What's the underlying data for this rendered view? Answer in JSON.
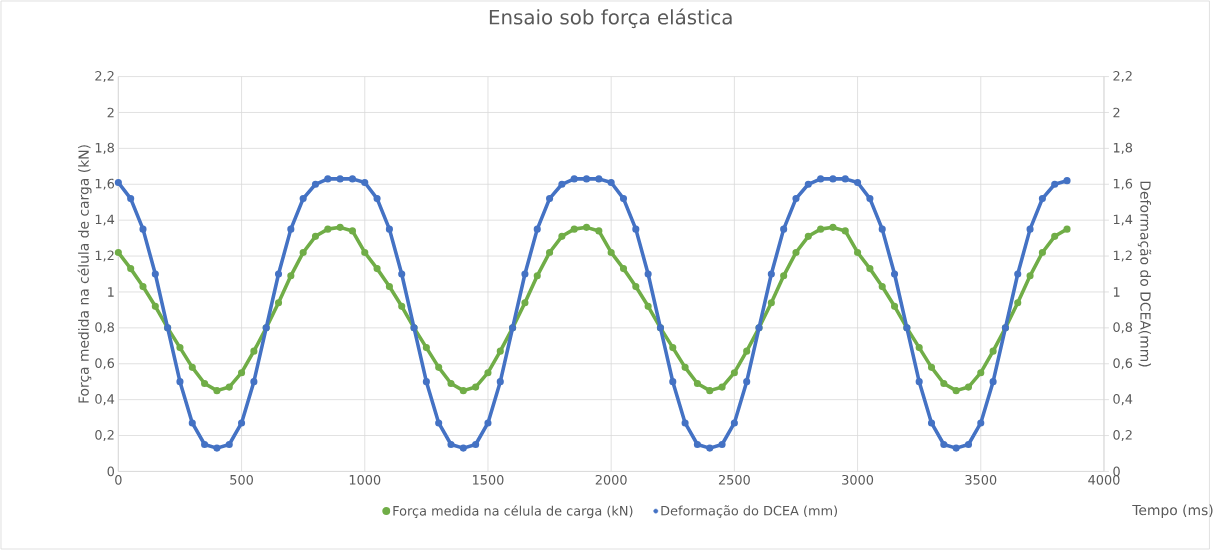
{
  "chart_data": {
    "type": "line",
    "title": "Ensaio sob força elástica",
    "xlabel": "Tempo (ms)",
    "ylabel": "Força medida na célula de carga (kN)",
    "y2label": "Deformação do DCEA(mm)",
    "x": [
      0,
      50,
      100,
      150,
      200,
      250,
      300,
      350,
      400,
      450,
      500,
      550,
      600,
      650,
      700,
      750,
      800,
      850,
      900,
      950,
      1000,
      1050,
      1100,
      1150,
      1200,
      1250,
      1300,
      1350,
      1400,
      1450,
      1500,
      1550,
      1600,
      1650,
      1700,
      1750,
      1800,
      1850,
      1900,
      1950,
      2000,
      2050,
      2100,
      2150,
      2200,
      2250,
      2300,
      2350,
      2400,
      2450,
      2500,
      2550,
      2600,
      2650,
      2700,
      2750,
      2800,
      2850,
      2900,
      2950,
      3000,
      3050,
      3100,
      3150,
      3200,
      3250,
      3300,
      3350,
      3400,
      3450,
      3500,
      3550,
      3600,
      3650,
      3700,
      3750,
      3800,
      3850
    ],
    "series": [
      {
        "name": "Força medida na célula de carga (kN)",
        "color": "#70ad47",
        "values": [
          1.22,
          1.13,
          1.03,
          0.92,
          0.8,
          0.69,
          0.58,
          0.49,
          0.45,
          0.47,
          0.55,
          0.67,
          0.8,
          0.94,
          1.09,
          1.22,
          1.31,
          1.35,
          1.36,
          1.34,
          1.22,
          1.13,
          1.03,
          0.92,
          0.8,
          0.69,
          0.58,
          0.49,
          0.45,
          0.47,
          0.55,
          0.67,
          0.8,
          0.94,
          1.09,
          1.22,
          1.31,
          1.35,
          1.36,
          1.34,
          1.22,
          1.13,
          1.03,
          0.92,
          0.8,
          0.69,
          0.58,
          0.49,
          0.45,
          0.47,
          0.55,
          0.67,
          0.8,
          0.94,
          1.09,
          1.22,
          1.31,
          1.35,
          1.36,
          1.34,
          1.22,
          1.13,
          1.03,
          0.92,
          0.8,
          0.69,
          0.58,
          0.49,
          0.45,
          0.47,
          0.55,
          0.67,
          0.8,
          0.94,
          1.09,
          1.22,
          1.31,
          1.35
        ]
      },
      {
        "name": "Deformação do DCEA (mm)",
        "color": "#4472c4",
        "axis": "y2",
        "values": [
          1.61,
          1.52,
          1.35,
          1.1,
          0.8,
          0.5,
          0.27,
          0.15,
          0.13,
          0.15,
          0.27,
          0.5,
          0.8,
          1.1,
          1.35,
          1.52,
          1.6,
          1.63,
          1.63,
          1.63,
          1.61,
          1.52,
          1.35,
          1.1,
          0.8,
          0.5,
          0.27,
          0.15,
          0.13,
          0.15,
          0.27,
          0.5,
          0.8,
          1.1,
          1.35,
          1.52,
          1.6,
          1.63,
          1.63,
          1.63,
          1.61,
          1.52,
          1.35,
          1.1,
          0.8,
          0.5,
          0.27,
          0.15,
          0.13,
          0.15,
          0.27,
          0.5,
          0.8,
          1.1,
          1.35,
          1.52,
          1.6,
          1.63,
          1.63,
          1.63,
          1.61,
          1.52,
          1.35,
          1.1,
          0.8,
          0.5,
          0.27,
          0.15,
          0.13,
          0.15,
          0.27,
          0.5,
          0.8,
          1.1,
          1.35,
          1.52,
          1.6,
          1.62
        ]
      }
    ],
    "xlim": [
      0,
      4000
    ],
    "xticks": [
      0,
      500,
      1000,
      1500,
      2000,
      2500,
      3000,
      3500,
      4000
    ],
    "ylim": [
      0,
      2.2
    ],
    "yticks": [
      0,
      {
        "value": 0.2,
        "label": "0,2"
      },
      {
        "value": 0.4,
        "label": "0,4"
      },
      {
        "value": 0.6,
        "label": "0,6"
      },
      {
        "value": 0.8,
        "label": "0,8"
      },
      1,
      {
        "value": 1.2,
        "label": "1,2"
      },
      {
        "value": 1.4,
        "label": "1,4"
      },
      {
        "value": 1.6,
        "label": "1,6"
      },
      {
        "value": 1.8,
        "label": "1,8"
      },
      2,
      {
        "value": 2.2,
        "label": "2,2"
      }
    ],
    "y2lim": [
      0,
      2.2
    ],
    "y2ticks": [
      0,
      {
        "value": 0.2,
        "label": "0,2"
      },
      {
        "value": 0.4,
        "label": "0,4"
      },
      {
        "value": 0.6,
        "label": "0,6"
      },
      {
        "value": 0.8,
        "label": "0,8"
      },
      1,
      {
        "value": 1.2,
        "label": "1,2"
      },
      {
        "value": 1.4,
        "label": "1,4"
      },
      {
        "value": 1.6,
        "label": "1,6"
      },
      {
        "value": 1.8,
        "label": "1,8"
      },
      2,
      {
        "value": 2.2,
        "label": "2,2"
      }
    ],
    "grid": true,
    "legend": "bottom",
    "marker": "circle",
    "line_style": "solid"
  }
}
